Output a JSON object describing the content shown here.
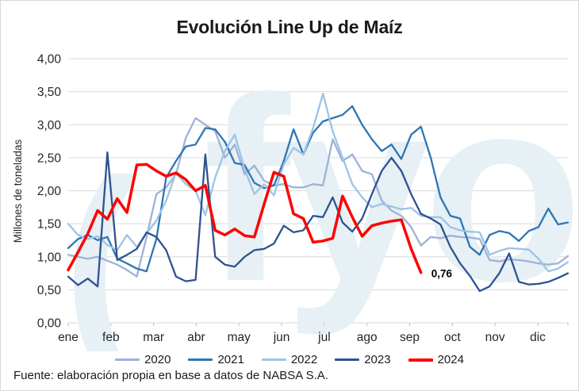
{
  "title": "Evolución Line Up de Maíz",
  "y_axis_title": "Millones de toneladas",
  "footer": "Fuente: elaboración propia en base a datos de NABSA S.A.",
  "watermark": {
    "left_glyph": "(",
    "text": "fyo",
    "color": "#e6f0f5"
  },
  "annotation": {
    "text": "0,76"
  },
  "axis_colors": {
    "grid": "#d9d9d9",
    "tick": "#bfbfbf",
    "label": "#262626"
  },
  "chart_data": {
    "type": "line",
    "title": "Evolución Line Up de Maíz",
    "xlabel": "",
    "ylabel": "Millones de toneladas",
    "x_unit": "semana (weekly points, ene-dic)",
    "categories": [
      "ene",
      "feb",
      "mar",
      "abr",
      "may",
      "jun",
      "jul",
      "ago",
      "sep",
      "oct",
      "nov",
      "dic"
    ],
    "y_tick_labels": [
      "0,00",
      "0,50",
      "1,00",
      "1,50",
      "2,00",
      "2,50",
      "3,00",
      "3,50",
      "4,00"
    ],
    "ylim": [
      0,
      4
    ],
    "grid": true,
    "legend_position": "bottom",
    "series": [
      {
        "name": "2020",
        "color": "#9fb1d8",
        "width": 2.3,
        "values": [
          1.03,
          1.0,
          0.97,
          1.0,
          0.94,
          0.88,
          0.8,
          0.7,
          1.3,
          1.95,
          2.05,
          2.25,
          2.8,
          3.1,
          3.0,
          2.9,
          2.5,
          2.7,
          2.25,
          2.38,
          2.15,
          2.08,
          2.1,
          2.05,
          2.05,
          2.1,
          2.08,
          2.78,
          2.45,
          2.55,
          2.3,
          2.25,
          1.85,
          1.7,
          1.62,
          1.45,
          1.17,
          1.3,
          1.28,
          1.32,
          1.3,
          1.29,
          1.27,
          0.95,
          0.93,
          0.96,
          0.95,
          0.93,
          0.9,
          0.88,
          0.9,
          1.01
        ]
      },
      {
        "name": "2021",
        "color": "#2e75b6",
        "width": 2.3,
        "values": [
          1.13,
          1.27,
          1.33,
          1.25,
          1.3,
          0.97,
          0.9,
          0.82,
          0.78,
          1.27,
          2.2,
          2.45,
          2.67,
          2.7,
          2.95,
          2.93,
          2.74,
          2.42,
          2.39,
          2.12,
          2.04,
          2.08,
          2.45,
          2.93,
          2.55,
          2.88,
          3.05,
          3.1,
          3.15,
          3.28,
          3.0,
          2.78,
          2.6,
          2.7,
          2.48,
          2.85,
          2.97,
          2.5,
          1.9,
          1.62,
          1.58,
          1.15,
          1.03,
          1.33,
          1.39,
          1.36,
          1.24,
          1.39,
          1.45,
          1.73,
          1.49,
          1.52
        ]
      },
      {
        "name": "2022",
        "color": "#9dc3e6",
        "width": 2.3,
        "values": [
          1.5,
          1.33,
          1.27,
          1.31,
          1.18,
          1.1,
          1.33,
          1.15,
          1.35,
          1.55,
          1.85,
          2.27,
          2.1,
          2.0,
          1.63,
          2.2,
          2.6,
          2.85,
          2.33,
          1.95,
          2.1,
          1.93,
          2.4,
          2.65,
          2.55,
          2.95,
          3.47,
          2.9,
          2.5,
          2.1,
          1.9,
          1.75,
          1.8,
          1.76,
          1.72,
          1.74,
          1.62,
          1.6,
          1.6,
          1.45,
          1.4,
          1.38,
          1.37,
          1.03,
          1.09,
          1.13,
          1.12,
          1.11,
          0.97,
          0.78,
          0.82,
          0.92
        ]
      },
      {
        "name": "2023",
        "color": "#2f5291",
        "width": 2.3,
        "values": [
          0.7,
          0.57,
          0.67,
          0.55,
          2.58,
          0.95,
          1.03,
          1.12,
          1.37,
          1.3,
          1.1,
          0.7,
          0.63,
          0.65,
          2.55,
          1.0,
          0.88,
          0.85,
          1.0,
          1.1,
          1.12,
          1.2,
          1.47,
          1.37,
          1.4,
          1.62,
          1.6,
          1.9,
          1.52,
          1.38,
          1.58,
          1.95,
          2.3,
          2.5,
          2.3,
          1.95,
          1.65,
          1.58,
          1.49,
          1.15,
          0.9,
          0.71,
          0.48,
          0.55,
          0.75,
          1.05,
          0.62,
          0.58,
          0.59,
          0.62,
          0.68,
          0.75
        ]
      },
      {
        "name": "2024",
        "color": "#ff0000",
        "width": 3.5,
        "end_label": "0,76",
        "values": [
          0.8,
          1.07,
          1.35,
          1.7,
          1.57,
          1.88,
          1.67,
          2.39,
          2.4,
          2.3,
          2.22,
          2.27,
          2.17,
          2.0,
          2.08,
          1.4,
          1.33,
          1.42,
          1.32,
          1.3,
          1.8,
          2.28,
          2.22,
          1.65,
          1.58,
          1.22,
          1.24,
          1.28,
          1.92,
          1.6,
          1.31,
          1.47,
          1.51,
          1.54,
          1.56,
          1.12,
          0.76
        ]
      }
    ]
  }
}
